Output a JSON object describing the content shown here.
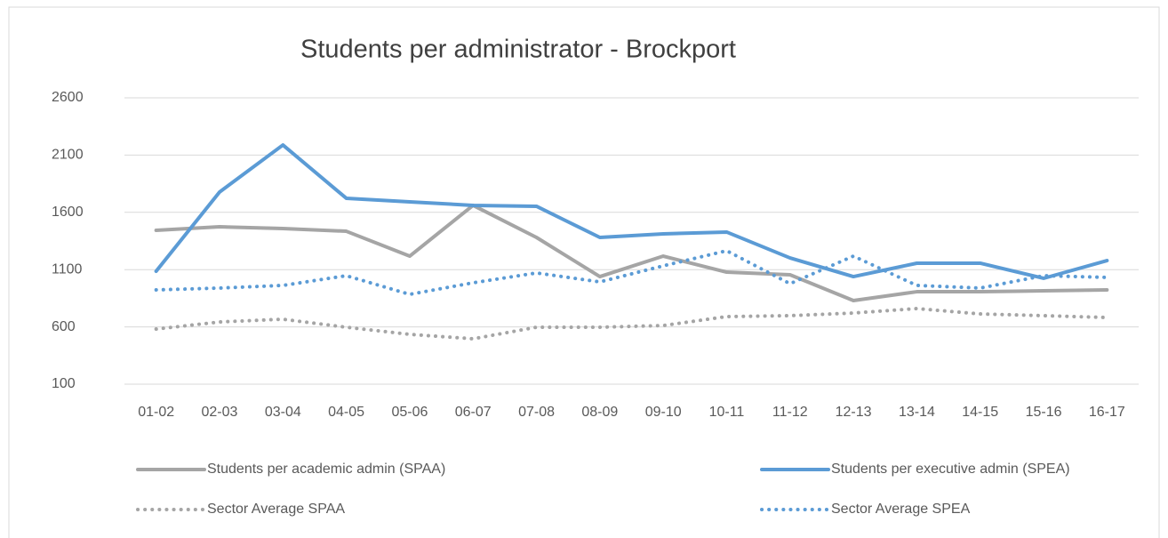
{
  "chart_data": {
    "type": "line",
    "title": "Students per administrator - Brockport",
    "categories": [
      "01-02",
      "02-03",
      "03-04",
      "04-05",
      "05-06",
      "06-07",
      "07-08",
      "08-09",
      "09-10",
      "10-11",
      "11-12",
      "12-13",
      "13-14",
      "14-15",
      "15-16",
      "16-17"
    ],
    "series": [
      {
        "name": "Students per academic admin (SPAA)",
        "color": "#a5a5a5",
        "style": "solid",
        "values": [
          1443,
          1474,
          1459,
          1435,
          1218,
          1661,
          1381,
          1039,
          1218,
          1078,
          1055,
          830,
          907,
          907,
          915,
          923
        ]
      },
      {
        "name": "Students per executive admin (SPEA)",
        "color": "#5b9bd5",
        "style": "solid",
        "values": [
          1086,
          1777,
          2188,
          1723,
          1692,
          1661,
          1653,
          1381,
          1412,
          1428,
          1202,
          1039,
          1156,
          1156,
          1024,
          1179
        ]
      },
      {
        "name": "Sector Average SPAA",
        "color": "#a5a5a5",
        "style": "dotted",
        "values": [
          581,
          643,
          667,
          597,
          535,
          496,
          597,
          597,
          612,
          690,
          698,
          721,
          760,
          713,
          698,
          682
        ]
      },
      {
        "name": "Sector Average SPEA",
        "color": "#5b9bd5",
        "style": "dotted",
        "values": [
          923,
          939,
          962,
          1047,
          884,
          985,
          1071,
          993,
          1133,
          1265,
          977,
          1218,
          962,
          939,
          1047,
          1032
        ]
      }
    ],
    "ylim": [
      100,
      2600
    ],
    "yticks": [
      100,
      600,
      1100,
      1600,
      2100,
      2600
    ],
    "grid": true,
    "legend": "bottom"
  }
}
